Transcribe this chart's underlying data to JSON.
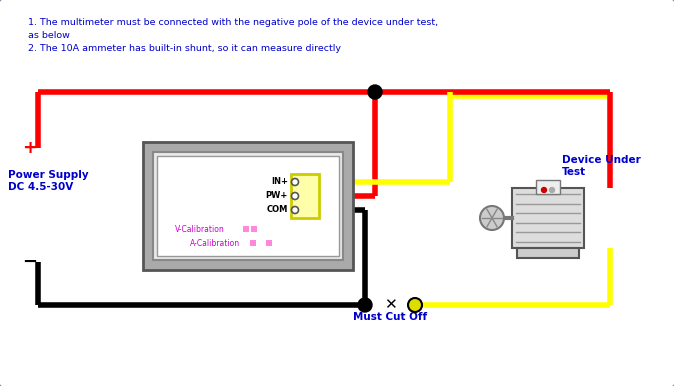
{
  "bg_color": "#ffffff",
  "border_color": "#8888aa",
  "text_instructions": [
    "1. The multimeter must be connected with the negative pole of the device under test,",
    "as below",
    "2. The 10A ammeter has built-in shunt, so it can measure directly"
  ],
  "text_color_instructions": "#0000cc",
  "power_supply_label": "Power Supply\nDC 4.5-30V",
  "plus_label": "+",
  "minus_label": "−",
  "device_label": "Device Under\nTest",
  "must_cut_label": "Must Cut Off",
  "wire_red": "#ff0000",
  "wire_yellow": "#ffff00",
  "wire_black": "#000000",
  "node_color": "#000000",
  "label_color_blue": "#0000cc",
  "label_color_black": "#000000",
  "vcal_color": "#cc00cc",
  "acal_color": "#cc00cc",
  "wire_lw": 4,
  "figw": 6.74,
  "figh": 3.86,
  "dpi": 100
}
